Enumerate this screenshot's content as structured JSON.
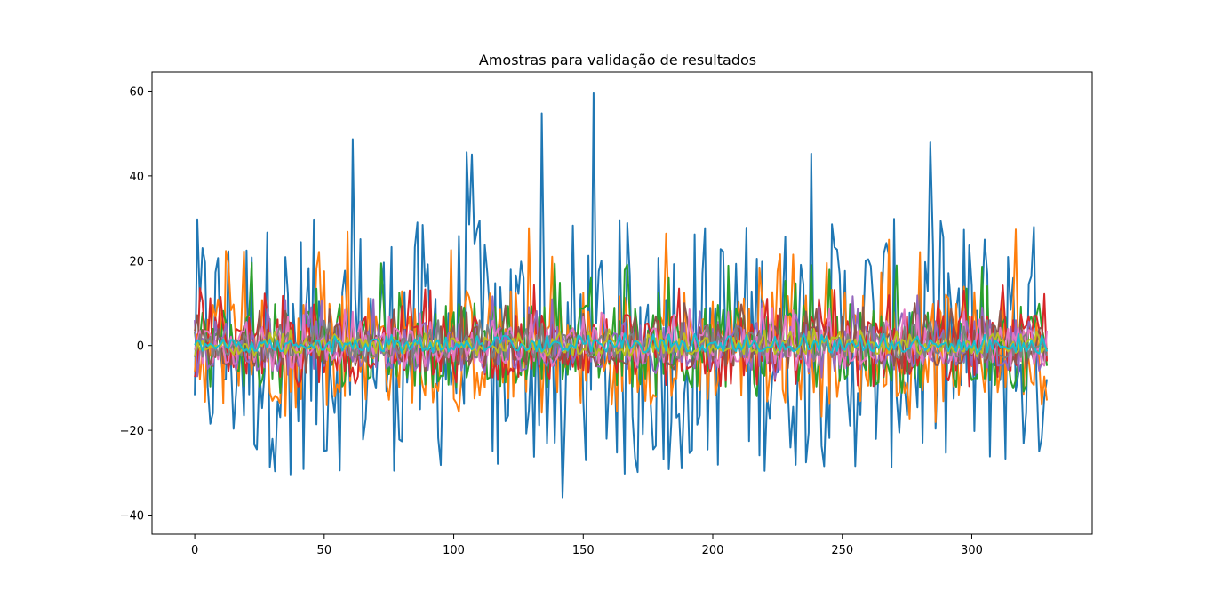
{
  "chart_data": {
    "type": "line",
    "title": "Amostras para validação de resultados",
    "xlabel": "",
    "ylabel": "",
    "xlim": [
      -16.5,
      346.5
    ],
    "ylim": [
      -44.5,
      64.5
    ],
    "x_ticks": [
      0,
      50,
      100,
      150,
      200,
      250,
      300
    ],
    "y_ticks": [
      -40,
      -20,
      0,
      20,
      40,
      60
    ],
    "x_tick_labels": [
      "0",
      "50",
      "100",
      "150",
      "200",
      "250",
      "300"
    ],
    "y_tick_labels": [
      "−40",
      "−20",
      "0",
      "20",
      "40",
      "60"
    ],
    "grid": false,
    "legend": "none",
    "n_points": 330,
    "series": [
      {
        "color": "#1f77b4",
        "amplitude": 60,
        "spike_prob": 0.22
      },
      {
        "color": "#ff7f0e",
        "amplitude": 28,
        "spike_prob": 0.35
      },
      {
        "color": "#2ca02c",
        "amplitude": 20,
        "spike_prob": 0.5
      },
      {
        "color": "#d62728",
        "amplitude": 15,
        "spike_prob": 0.5
      },
      {
        "color": "#9467bd",
        "amplitude": 12,
        "spike_prob": 0.6
      },
      {
        "color": "#8c564b",
        "amplitude": 10,
        "spike_prob": 0.6
      },
      {
        "color": "#e377c2",
        "amplitude": 9,
        "spike_prob": 0.6
      },
      {
        "color": "#7f7f7f",
        "amplitude": 6,
        "spike_prob": 0.6
      },
      {
        "color": "#bcbd22",
        "amplitude": 4,
        "spike_prob": 0.6
      },
      {
        "color": "#17becf",
        "amplitude": 3,
        "spike_prob": 0.6
      }
    ]
  }
}
